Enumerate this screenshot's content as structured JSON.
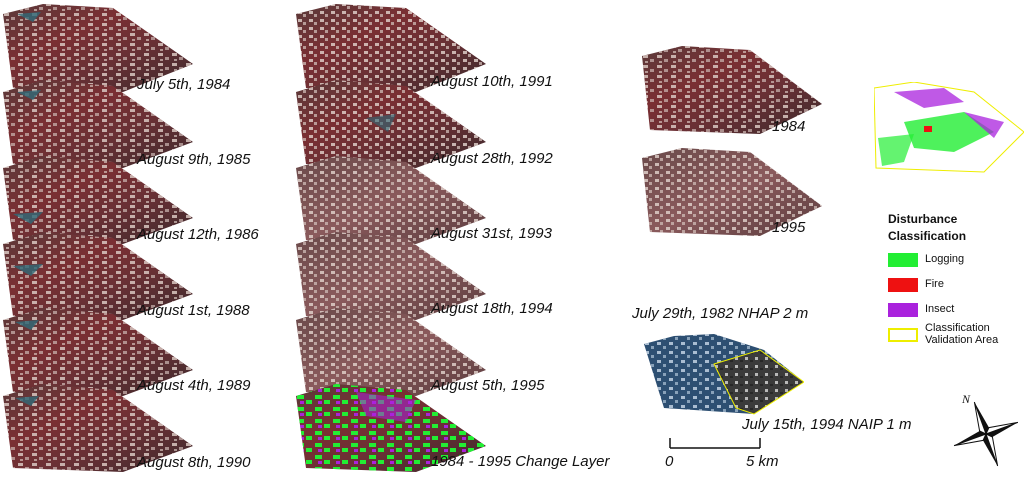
{
  "left_column": [
    {
      "date": "July 5th, 1984"
    },
    {
      "date": "August 9th, 1985"
    },
    {
      "date": "August 12th, 1986"
    },
    {
      "date": "August 1st, 1988"
    },
    {
      "date": "August 4th, 1989"
    },
    {
      "date": "August 8th, 1990"
    }
  ],
  "middle_column": [
    {
      "date": "August 10th, 1991"
    },
    {
      "date": "August 28th, 1992"
    },
    {
      "date": "August 31st, 1993"
    },
    {
      "date": "August 18th, 1994"
    },
    {
      "date": "August 5th, 1995"
    },
    {
      "date": "1984 - 1995 Change Layer"
    }
  ],
  "comparison": {
    "year_a": "1984",
    "year_b": "1995"
  },
  "aerial": {
    "nhap_label": "July 29th, 1982 NHAP 2 m",
    "naip_label": "July 15th, 1994 NAIP 1 m"
  },
  "legend": {
    "title_line1": "Disturbance",
    "title_line2": "Classification",
    "items": [
      {
        "label": "Logging",
        "color": "#22ee33"
      },
      {
        "label": "Fire",
        "color": "#ee1111"
      },
      {
        "label": "Insect",
        "color": "#aa22dd"
      },
      {
        "label_line1": "Classification",
        "label_line2": "Validation Area",
        "color": "#eeee00"
      }
    ]
  },
  "scale": {
    "start": "0",
    "end": "5 km"
  },
  "compass": {
    "north": "N"
  }
}
